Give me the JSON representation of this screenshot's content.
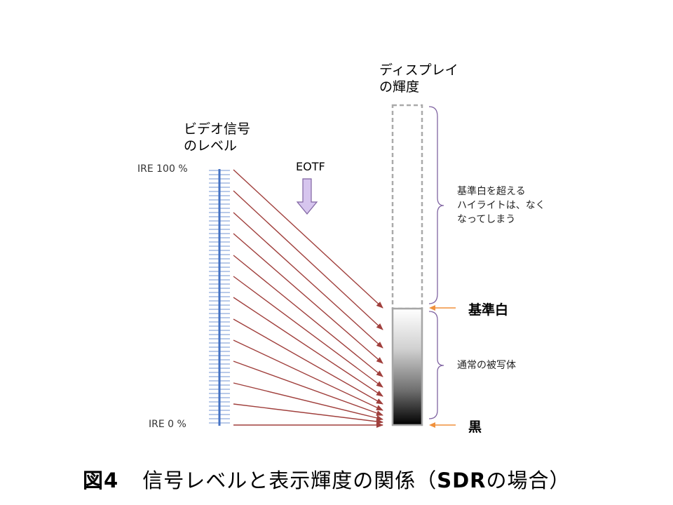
{
  "video_signal": {
    "title_line1": "ビデオ信号",
    "title_line2": "のレベル",
    "top_label": "IRE 100 %",
    "bottom_label": "IRE 0 %",
    "bar_color": "#4472c4"
  },
  "transfer": {
    "label": "EOTF",
    "arrow_color": "#d6c5ee",
    "line_color": "#a03f3c"
  },
  "display": {
    "title_line1": "ディスプレイ",
    "title_line2": "の輝度"
  },
  "annotations": {
    "highlight_note": "基準白を超える\nハイライトは、なく\nなってしまう",
    "subject_note": "通常の被写体",
    "reference_white": "基準白",
    "black": "黒",
    "brace_color": "#8064a2",
    "pointer_color": "#f0913c"
  },
  "caption": {
    "figure_number": "図4",
    "text_part1": "信号レベルと表示輝度の関係（",
    "text_bold": "SDR",
    "text_part2": "の場合）"
  }
}
